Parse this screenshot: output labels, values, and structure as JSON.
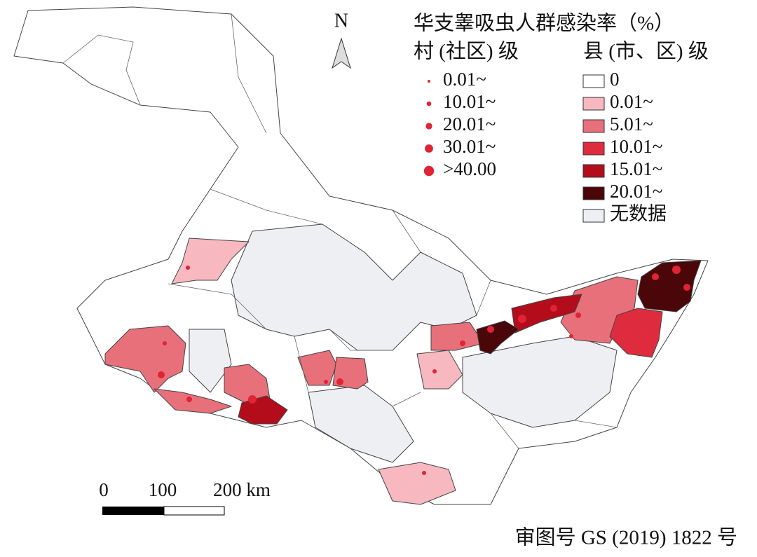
{
  "north": "N",
  "legend": {
    "title": "华支睾吸虫人群感染率（%）",
    "village": {
      "title": "村 (社区) 级",
      "items": [
        "0.01~",
        "10.01~",
        "20.01~",
        "30.01~",
        ">40.00"
      ]
    },
    "county": {
      "title": "县 (市、区) 级",
      "items": [
        {
          "label": "0",
          "color": "#ffffff"
        },
        {
          "label": "0.01~",
          "color": "#f7b8bf"
        },
        {
          "label": "5.01~",
          "color": "#e8707a"
        },
        {
          "label": "10.01~",
          "color": "#de2b3e"
        },
        {
          "label": "15.01~",
          "color": "#b30d1c"
        },
        {
          "label": "20.01~",
          "color": "#4a0608"
        },
        {
          "label": "无数据",
          "color": "#eeeff3"
        }
      ]
    }
  },
  "scale": {
    "labels": [
      "0",
      "100",
      "200 km"
    ]
  },
  "approval": "审图号 GS (2019) 1822 号"
}
